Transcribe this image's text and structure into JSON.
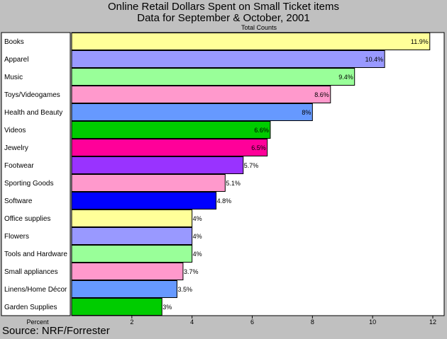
{
  "chart_data": {
    "type": "bar",
    "orientation": "horizontal",
    "title": "Online Retail Dollars Spent on Small Ticket items",
    "subtitle": "Data for September & October, 2001",
    "series_label": "Total Counts",
    "xlabel": "Percent",
    "source": "Source: NRF/Forrester",
    "xlim": [
      0,
      12
    ],
    "xticks": [
      "2",
      "4",
      "6",
      "8",
      "10",
      "12"
    ],
    "grid": false,
    "categories": [
      "Books",
      "Apparel",
      "Music",
      "Toys/Videogames",
      "Health and Beauty",
      "Videos",
      "Jewelry",
      "Footwear",
      "Sporting Goods",
      "Software",
      "Office supplies",
      "Flowers",
      "Tools and Hardware",
      "Small appliances",
      "Linens/Home Décor",
      "Garden Supplies"
    ],
    "values": [
      11.9,
      10.4,
      9.4,
      8.6,
      8,
      6.6,
      6.5,
      5.7,
      5.1,
      4.8,
      4,
      4,
      4,
      3.7,
      3.5,
      3
    ],
    "data_labels": [
      "11.9%",
      "10.4%",
      "9.4%",
      "8.6%",
      "8%",
      "6.6%",
      "6.5%",
      "5.7%",
      "5.1%",
      "4.8%",
      "4%",
      "4%",
      "4%",
      "3.7%",
      "3.5%",
      "3%"
    ],
    "colors": [
      "#ffff99",
      "#9999ff",
      "#99ff99",
      "#ff99cc",
      "#6699ff",
      "#00cc00",
      "#ff0099",
      "#9933ff",
      "#ff99cc",
      "#0000ff",
      "#ffff99",
      "#9999ff",
      "#99ff99",
      "#ff99cc",
      "#6699ff",
      "#00cc00"
    ]
  }
}
